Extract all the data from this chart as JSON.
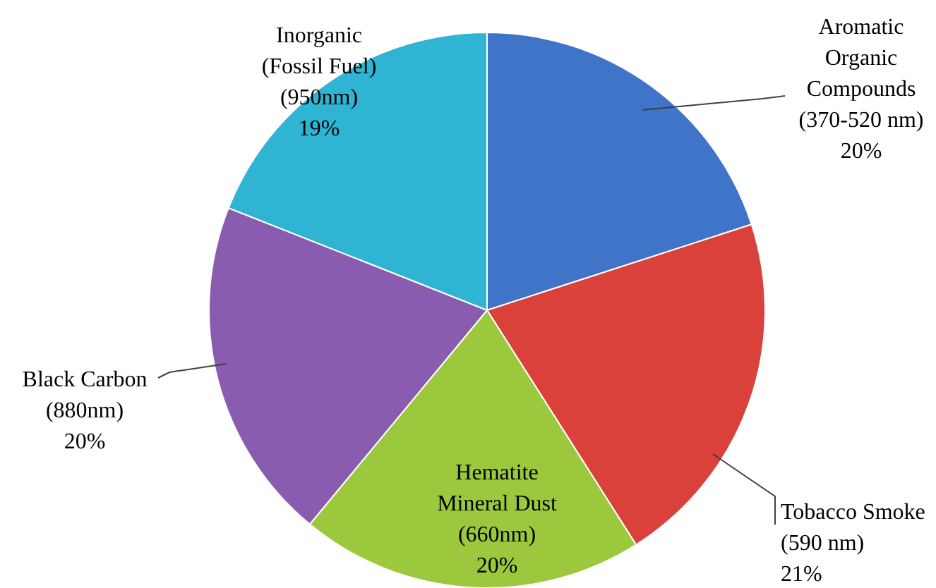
{
  "chart_data": {
    "type": "pie",
    "categories": [
      "Aromatic\nOrganic\nCompounds\n(370-520 nm)",
      "Tobacco Smoke\n(590 nm)",
      "Hematite\nMineral Dust\n(660nm)",
      "Black Carbon\n(880nm)",
      "Inorganic\n(Fossil Fuel)\n(950nm)"
    ],
    "values": [
      20,
      21,
      20,
      20,
      19
    ],
    "value_labels": [
      "20%",
      "21%",
      "20%",
      "20%",
      "19%"
    ],
    "colors": [
      "#3f74c8",
      "#d9413a",
      "#9bc83c",
      "#8a5cb0",
      "#2fb4d4"
    ]
  }
}
